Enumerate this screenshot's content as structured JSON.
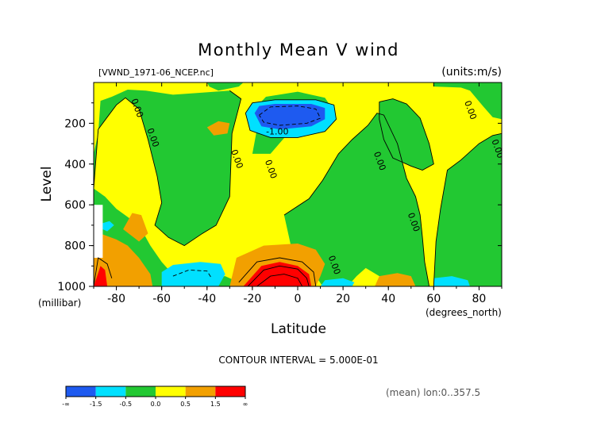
{
  "chart_data": {
    "type": "heatmap",
    "title": "Monthly Mean V wind",
    "file_label": "[VWND_1971-06_NCEP.nc]",
    "units_label": "(units:m/s)",
    "xlabel": "Latitude",
    "ylabel": "Level",
    "x_unit_label": "(degrees_north)",
    "y_unit_label": "(millibar)",
    "xlim": [
      -90,
      90
    ],
    "ylim": [
      1000,
      0
    ],
    "x_ticks": [
      "-80",
      "-60",
      "-40",
      "-20",
      "0",
      "20",
      "40",
      "60",
      "80"
    ],
    "y_ticks": [
      "200",
      "400",
      "600",
      "800",
      "1000"
    ],
    "contour_interval_label": "CONTOUR INTERVAL = 5.000E-01",
    "mean_label": "(mean) lon:0..357.5",
    "contour_labels": [
      {
        "text": "0.00",
        "lat": -72,
        "level": 130
      },
      {
        "text": "0.00",
        "lat": -65,
        "level": 275
      },
      {
        "text": "0.00",
        "lat": -28,
        "level": 380
      },
      {
        "text": "0.00",
        "lat": -13,
        "level": 430
      },
      {
        "text": "-1.00",
        "lat": -9,
        "level": 255
      },
      {
        "text": "0.00",
        "lat": 35,
        "level": 390
      },
      {
        "text": "0.00",
        "lat": 50,
        "level": 690
      },
      {
        "text": "0.00",
        "lat": 15,
        "level": 900
      },
      {
        "text": "0.00",
        "lat": 75,
        "level": 140
      },
      {
        "text": "0.00",
        "lat": 87,
        "level": 330
      }
    ],
    "colorbar": {
      "colors": [
        "#1e5af0",
        "#00e0ff",
        "#22c832",
        "#ffff00",
        "#f2a000",
        "#ff0000"
      ],
      "labels": [
        "-∞",
        "-1.5",
        "-0.5",
        "0.0",
        "0.5",
        "1.5",
        "∞"
      ]
    },
    "regions": [
      {
        "fill": "#ffff00",
        "points": [
          [
            -90,
            0
          ],
          [
            90,
            0
          ],
          [
            90,
            1000
          ],
          [
            -90,
            1000
          ]
        ]
      },
      {
        "fill": "#22c832",
        "points": [
          [
            -90,
            520
          ],
          [
            -88,
            230
          ],
          [
            -84,
            170
          ],
          [
            -80,
            110
          ],
          [
            -76,
            75
          ],
          [
            -70,
            130
          ],
          [
            -66,
            280
          ],
          [
            -62,
            460
          ],
          [
            -60,
            590
          ],
          [
            -63,
            700
          ],
          [
            -57,
            760
          ],
          [
            -50,
            800
          ],
          [
            -42,
            740
          ],
          [
            -36,
            700
          ],
          [
            -30,
            560
          ],
          [
            -29,
            250
          ],
          [
            -25,
            80
          ],
          [
            -30,
            40
          ],
          [
            -42,
            50
          ],
          [
            -55,
            60
          ],
          [
            -67,
            40
          ],
          [
            -75,
            35
          ],
          [
            -82,
            70
          ],
          [
            -87,
            90
          ],
          [
            -88,
            250
          ],
          [
            -90,
            350
          ]
        ]
      },
      {
        "fill": "#22c832",
        "points": [
          [
            -40,
            0
          ],
          [
            -24,
            0
          ],
          [
            -26,
            20
          ],
          [
            -35,
            40
          ],
          [
            -39,
            20
          ]
        ]
      },
      {
        "fill": "#22c832",
        "points": [
          [
            -20,
            350
          ],
          [
            -18,
            230
          ],
          [
            -20,
            140
          ],
          [
            -14,
            70
          ],
          [
            0,
            45
          ],
          [
            12,
            75
          ],
          [
            16,
            140
          ],
          [
            12,
            200
          ],
          [
            5,
            230
          ],
          [
            -5,
            260
          ],
          [
            -12,
            350
          ]
        ]
      },
      {
        "fill": "#22c832",
        "points": [
          [
            -90,
            1000
          ],
          [
            -90,
            520
          ],
          [
            -85,
            560
          ],
          [
            -80,
            620
          ],
          [
            -70,
            700
          ],
          [
            -65,
            800
          ],
          [
            -60,
            880
          ],
          [
            -56,
            930
          ],
          [
            -50,
            960
          ],
          [
            -40,
            960
          ],
          [
            -32,
            950
          ],
          [
            -26,
            980
          ],
          [
            -24,
            1000
          ]
        ]
      },
      {
        "fill": "#22c832",
        "points": [
          [
            -6,
            650
          ],
          [
            5,
            570
          ],
          [
            11,
            480
          ],
          [
            18,
            350
          ],
          [
            24,
            280
          ],
          [
            31,
            210
          ],
          [
            35,
            150
          ],
          [
            38,
            160
          ],
          [
            44,
            300
          ],
          [
            48,
            470
          ],
          [
            52,
            560
          ],
          [
            54,
            650
          ],
          [
            55,
            760
          ],
          [
            56,
            880
          ],
          [
            58,
            1000
          ],
          [
            48,
            1000
          ],
          [
            42,
            960
          ],
          [
            36,
            950
          ],
          [
            30,
            910
          ],
          [
            26,
            950
          ],
          [
            22,
            1000
          ],
          [
            11,
            1000
          ],
          [
            8,
            950
          ],
          [
            2,
            920
          ],
          [
            -3,
            800
          ]
        ]
      },
      {
        "fill": "#22c832",
        "points": [
          [
            36,
            95
          ],
          [
            42,
            80
          ],
          [
            48,
            105
          ],
          [
            54,
            175
          ],
          [
            58,
            300
          ],
          [
            60,
            400
          ],
          [
            55,
            430
          ],
          [
            50,
            410
          ],
          [
            42,
            370
          ],
          [
            38,
            280
          ],
          [
            36,
            180
          ]
        ]
      },
      {
        "fill": "#22c832",
        "points": [
          [
            60,
            1000
          ],
          [
            61,
            780
          ],
          [
            63,
            620
          ],
          [
            66,
            430
          ],
          [
            72,
            380
          ],
          [
            80,
            300
          ],
          [
            86,
            260
          ],
          [
            90,
            250
          ],
          [
            90,
            1000
          ]
        ]
      },
      {
        "fill": "#22c832",
        "points": [
          [
            60,
            20
          ],
          [
            72,
            25
          ],
          [
            76,
            40
          ],
          [
            82,
            120
          ],
          [
            86,
            170
          ],
          [
            90,
            180
          ],
          [
            90,
            0
          ],
          [
            60,
            0
          ]
        ]
      },
      {
        "fill": "#00e0ff",
        "points": [
          [
            -23,
            150
          ],
          [
            -20,
            100
          ],
          [
            -10,
            85
          ],
          [
            8,
            85
          ],
          [
            16,
            110
          ],
          [
            17,
            180
          ],
          [
            12,
            240
          ],
          [
            0,
            270
          ],
          [
            -12,
            270
          ],
          [
            -21,
            235
          ]
        ]
      },
      {
        "fill": "#1e5af0",
        "points": [
          [
            -19,
            150
          ],
          [
            -17,
            115
          ],
          [
            -10,
            105
          ],
          [
            6,
            105
          ],
          [
            12,
            125
          ],
          [
            12,
            180
          ],
          [
            6,
            215
          ],
          [
            -8,
            230
          ],
          [
            -16,
            215
          ]
        ]
      },
      {
        "fill": "#00e0ff",
        "points": [
          [
            -60,
            1000
          ],
          [
            -60,
            930
          ],
          [
            -55,
            895
          ],
          [
            -43,
            880
          ],
          [
            -34,
            890
          ],
          [
            -32,
            940
          ],
          [
            -35,
            1000
          ]
        ]
      },
      {
        "fill": "#00e0ff",
        "points": [
          [
            10,
            1000
          ],
          [
            12,
            970
          ],
          [
            20,
            960
          ],
          [
            25,
            980
          ],
          [
            24,
            1000
          ]
        ]
      },
      {
        "fill": "#00e0ff",
        "points": [
          [
            60,
            1000
          ],
          [
            60,
            960
          ],
          [
            68,
            950
          ],
          [
            75,
            970
          ],
          [
            76,
            1000
          ]
        ]
      },
      {
        "fill": "#00e0ff",
        "points": [
          [
            -86,
            690
          ],
          [
            -83,
            680
          ],
          [
            -81,
            700
          ],
          [
            -84,
            730
          ],
          [
            -86,
            720
          ]
        ]
      },
      {
        "fill": "#f2a000",
        "points": [
          [
            -90,
            1000
          ],
          [
            -90,
            770
          ],
          [
            -86,
            745
          ],
          [
            -80,
            770
          ],
          [
            -75,
            800
          ],
          [
            -70,
            860
          ],
          [
            -65,
            940
          ],
          [
            -64,
            1000
          ]
        ]
      },
      {
        "fill": "#f2a000",
        "points": [
          [
            -77,
            720
          ],
          [
            -73,
            640
          ],
          [
            -69,
            650
          ],
          [
            -66,
            740
          ],
          [
            -70,
            780
          ]
        ]
      },
      {
        "fill": "#f2a000",
        "points": [
          [
            -40,
            220
          ],
          [
            -35,
            190
          ],
          [
            -30,
            200
          ],
          [
            -31,
            250
          ],
          [
            -37,
            260
          ]
        ]
      },
      {
        "fill": "#f2a000",
        "points": [
          [
            -30,
            1000
          ],
          [
            -27,
            860
          ],
          [
            -15,
            800
          ],
          [
            0,
            790
          ],
          [
            8,
            820
          ],
          [
            12,
            890
          ],
          [
            10,
            950
          ],
          [
            8,
            1000
          ]
        ]
      },
      {
        "fill": "#f2a000",
        "points": [
          [
            34,
            1000
          ],
          [
            36,
            950
          ],
          [
            44,
            935
          ],
          [
            50,
            950
          ],
          [
            52,
            1000
          ]
        ]
      },
      {
        "fill": "#ff0000",
        "points": [
          [
            -24,
            1000
          ],
          [
            -16,
            900
          ],
          [
            -8,
            880
          ],
          [
            0,
            900
          ],
          [
            5,
            940
          ],
          [
            6,
            1000
          ]
        ]
      },
      {
        "fill": "#ff0000",
        "points": [
          [
            -90,
            1000
          ],
          [
            -87,
            900
          ],
          [
            -85,
            920
          ],
          [
            -84,
            1000
          ]
        ]
      }
    ],
    "solid_contours": [
      [
        [
          -26,
          980
        ],
        [
          -18,
          880
        ],
        [
          -8,
          860
        ],
        [
          2,
          880
        ],
        [
          7,
          930
        ],
        [
          8,
          1000
        ]
      ],
      [
        [
          -22,
          1000
        ],
        [
          -15,
          920
        ],
        [
          -8,
          900
        ],
        [
          0,
          915
        ],
        [
          4,
          960
        ],
        [
          5,
          1000
        ]
      ],
      [
        [
          -18,
          1000
        ],
        [
          -12,
          950
        ],
        [
          -6,
          940
        ],
        [
          0,
          960
        ],
        [
          2,
          1000
        ]
      ],
      [
        [
          -90,
          1000
        ],
        [
          -88,
          860
        ],
        [
          -84,
          890
        ],
        [
          -82,
          960
        ]
      ]
    ],
    "dashed_contours": [
      [
        [
          -17,
          160
        ],
        [
          -12,
          120
        ],
        [
          0,
          115
        ],
        [
          8,
          130
        ],
        [
          10,
          175
        ],
        [
          4,
          200
        ],
        [
          -8,
          210
        ],
        [
          -15,
          195
        ],
        [
          -17,
          160
        ]
      ],
      [
        [
          -55,
          950
        ],
        [
          -48,
          920
        ],
        [
          -40,
          925
        ],
        [
          -38,
          960
        ]
      ]
    ],
    "black_contours": [
      [
        [
          -90,
          520
        ],
        [
          -88,
          230
        ],
        [
          -84,
          170
        ],
        [
          -80,
          110
        ],
        [
          -76,
          75
        ],
        [
          -70,
          130
        ],
        [
          -66,
          280
        ],
        [
          -62,
          460
        ],
        [
          -60,
          590
        ],
        [
          -63,
          700
        ],
        [
          -57,
          760
        ],
        [
          -50,
          800
        ],
        [
          -42,
          740
        ],
        [
          -36,
          700
        ],
        [
          -30,
          560
        ],
        [
          -29,
          250
        ],
        [
          -25,
          80
        ],
        [
          -30,
          40
        ]
      ],
      [
        [
          -6,
          650
        ],
        [
          5,
          570
        ],
        [
          11,
          480
        ],
        [
          18,
          350
        ],
        [
          24,
          280
        ],
        [
          31,
          210
        ],
        [
          35,
          150
        ],
        [
          38,
          160
        ],
        [
          44,
          300
        ],
        [
          48,
          470
        ],
        [
          52,
          560
        ],
        [
          54,
          650
        ],
        [
          55,
          760
        ],
        [
          56,
          880
        ],
        [
          58,
          1000
        ]
      ],
      [
        [
          60,
          1000
        ],
        [
          61,
          780
        ],
        [
          63,
          620
        ],
        [
          66,
          430
        ],
        [
          72,
          380
        ],
        [
          80,
          300
        ],
        [
          86,
          260
        ],
        [
          90,
          250
        ]
      ],
      [
        [
          -23,
          150
        ],
        [
          -20,
          100
        ],
        [
          -10,
          85
        ],
        [
          8,
          85
        ],
        [
          16,
          110
        ],
        [
          17,
          180
        ],
        [
          12,
          240
        ],
        [
          0,
          270
        ],
        [
          -12,
          270
        ],
        [
          -21,
          235
        ],
        [
          -23,
          150
        ]
      ],
      [
        [
          36,
          95
        ],
        [
          42,
          80
        ],
        [
          48,
          105
        ],
        [
          54,
          175
        ],
        [
          58,
          300
        ],
        [
          60,
          400
        ],
        [
          55,
          430
        ],
        [
          50,
          410
        ],
        [
          42,
          370
        ],
        [
          38,
          280
        ],
        [
          36,
          180
        ],
        [
          36,
          95
        ]
      ]
    ],
    "missing_regions": [
      [
        [
          -90,
          600
        ],
        [
          -86,
          600
        ],
        [
          -86,
          860
        ],
        [
          -90,
          860
        ]
      ]
    ]
  }
}
